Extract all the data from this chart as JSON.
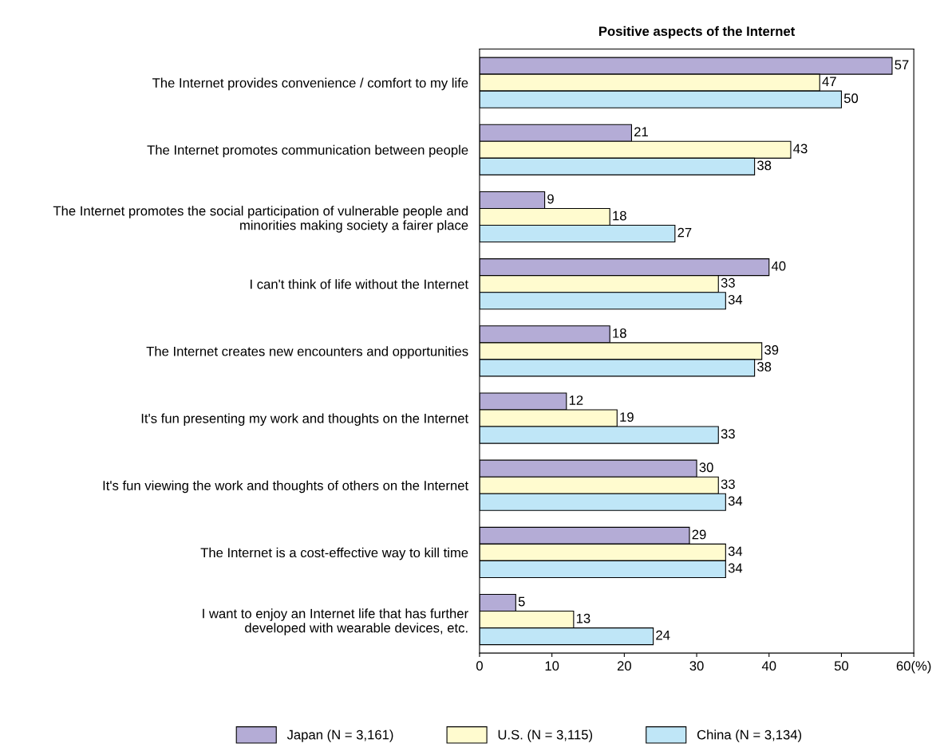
{
  "chart_data": {
    "type": "bar",
    "orientation": "horizontal",
    "title": "Positive aspects of the Internet",
    "categories": [
      "The Internet provides convenience / comfort to my life",
      "The Internet promotes communication between people",
      "The Internet promotes the social participation of vulnerable people and\nminorities making society a fairer place",
      "I can't think of life without the Internet",
      "The Internet creates new encounters and opportunities",
      "It's fun presenting my work and thoughts on the Internet",
      "It's fun viewing the work and thoughts of others on the Internet",
      "The Internet is a cost-effective way to kill time",
      "I want to enjoy an Internet life that has further\ndeveloped with wearable devices, etc."
    ],
    "series": [
      {
        "name": "Japan (N = 3,161)",
        "color": "#b4acd6",
        "values": [
          57,
          21,
          9,
          40,
          18,
          12,
          30,
          29,
          5
        ]
      },
      {
        "name": "U.S. (N = 3,115)",
        "color": "#fffbcf",
        "values": [
          47,
          43,
          18,
          33,
          39,
          19,
          33,
          34,
          13
        ]
      },
      {
        "name": "China (N = 3,134)",
        "color": "#bfe6f7",
        "values": [
          50,
          38,
          27,
          34,
          38,
          33,
          34,
          34,
          24
        ]
      }
    ],
    "xlim": [
      0,
      60
    ],
    "xticks": [
      0,
      10,
      20,
      30,
      40,
      50,
      {
        "value": 60,
        "label": "60(%)"
      }
    ],
    "data_labels": true,
    "grid": false,
    "legend": "bottom"
  }
}
